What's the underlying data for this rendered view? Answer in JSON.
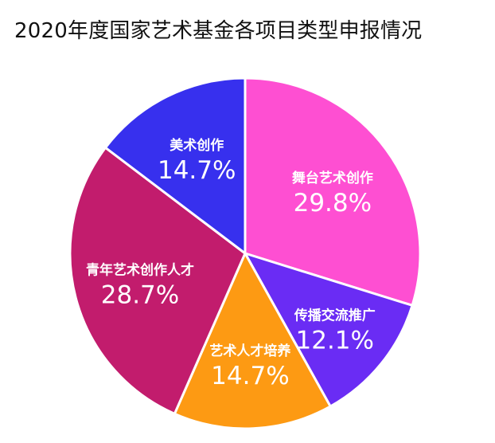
{
  "chart_data": {
    "type": "pie",
    "title": "2020年度国家艺术基金各项目类型申报情况",
    "slices": [
      {
        "label": "舞台艺术创作",
        "value": 29.8,
        "display": "29.8%",
        "color": "#fe4fd2"
      },
      {
        "label": "传播交流推广",
        "value": 12.1,
        "display": "12.1%",
        "color": "#6a2cf4"
      },
      {
        "label": "艺术人才培养",
        "value": 14.7,
        "display": "14.7%",
        "color": "#fd9a13"
      },
      {
        "label": "青年艺术创作人才",
        "value": 28.7,
        "display": "28.7%",
        "color": "#c21c6d"
      },
      {
        "label": "美术创作",
        "value": 14.7,
        "display": "14.7%",
        "color": "#3730ee"
      }
    ],
    "start_direction": "12 o'clock",
    "order": "clockwise",
    "legend": "none"
  }
}
